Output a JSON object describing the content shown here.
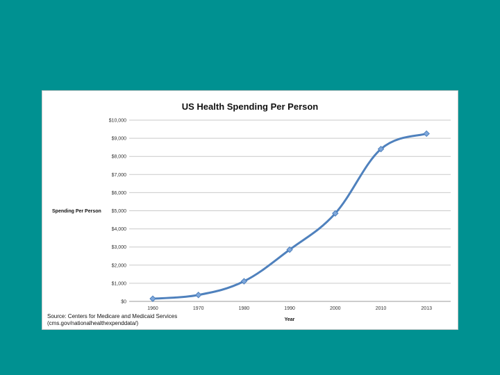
{
  "slide": {
    "background": "#009191"
  },
  "chart_data": {
    "type": "line",
    "title": "US Health Spending Per Person",
    "xlabel": "Year",
    "ylabel": "Spending Per Person",
    "categories": [
      "1960",
      "1970",
      "1980",
      "1990",
      "2000",
      "2010",
      "2013"
    ],
    "series": [
      {
        "values": [
          147,
          355,
          1110,
          2854,
          4857,
          8404,
          9255
        ],
        "color": "#4f81bd"
      }
    ],
    "ylim": [
      0,
      10000
    ],
    "yticks": [
      0,
      1000,
      2000,
      3000,
      4000,
      5000,
      6000,
      7000,
      8000,
      9000,
      10000
    ],
    "ytick_labels": [
      "$0",
      "$1,000",
      "$2,000",
      "$3,000",
      "$4,000",
      "$5,000",
      "$6,000",
      "$7,000",
      "$8,000",
      "$9,000",
      "$10,000"
    ],
    "grid": true,
    "legend": "none"
  },
  "source": {
    "line1": "Source: Centers for Medicare and Medicaid Services",
    "line2": "(cms.gov/nationalhealthexpenddata/)"
  }
}
